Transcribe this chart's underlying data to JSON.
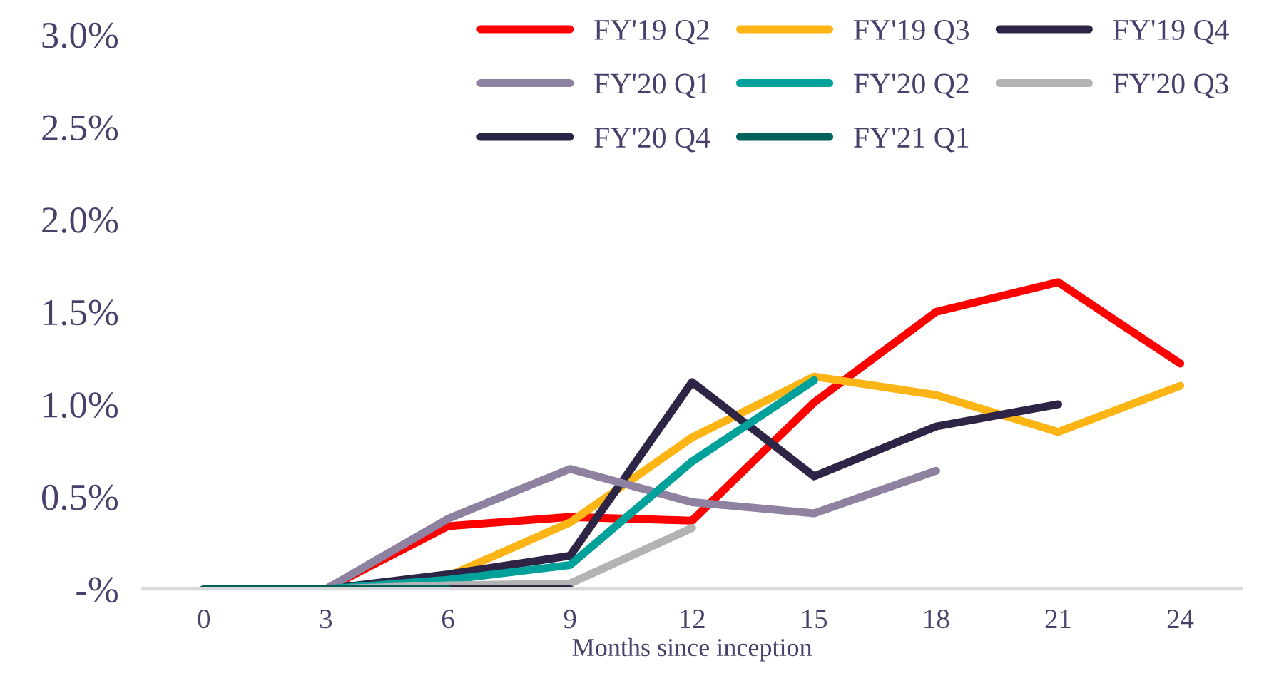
{
  "chart_data": {
    "type": "line",
    "xlabel": "Months since inception",
    "x": [
      0,
      3,
      6,
      9,
      12,
      15,
      18,
      21,
      24
    ],
    "series": [
      {
        "name": "FY'19 Q2",
        "color": "#ff0000",
        "values": [
          0,
          0,
          0.34,
          0.39,
          0.37,
          1.01,
          1.5,
          1.66,
          1.22
        ]
      },
      {
        "name": "FY'19 Q3",
        "color": "#fdb515",
        "values": [
          0,
          0,
          0.07,
          0.36,
          0.82,
          1.15,
          1.05,
          0.85,
          1.1
        ]
      },
      {
        "name": "FY'19 Q4",
        "color": "#2e2445",
        "values": [
          0,
          0,
          0.08,
          0.18,
          1.12,
          0.61,
          0.88,
          1.0,
          null
        ]
      },
      {
        "name": "FY'20 Q1",
        "color": "#8e82a0",
        "values": [
          0,
          0,
          0.38,
          0.65,
          0.47,
          0.41,
          0.64,
          null,
          null
        ]
      },
      {
        "name": "FY'20 Q2",
        "color": "#00a19a",
        "values": [
          0,
          0,
          0.05,
          0.13,
          0.69,
          1.13,
          null,
          null,
          null
        ]
      },
      {
        "name": "FY'20 Q3",
        "color": "#b3b3b3",
        "values": [
          0,
          0,
          0.02,
          0.03,
          0.33,
          null,
          null,
          null,
          null
        ]
      },
      {
        "name": "FY'20 Q4",
        "color": "#2e2445",
        "values": [
          null,
          null,
          0,
          0,
          null,
          null,
          null,
          null,
          null
        ]
      },
      {
        "name": "FY'21 Q1",
        "color": "#00625a",
        "values": [
          0,
          0,
          0,
          null,
          null,
          null,
          null,
          null,
          null
        ]
      }
    ],
    "xlim": [
      -1.5,
      25.5
    ],
    "xticks": [
      0,
      3,
      6,
      9,
      12,
      15,
      18,
      21,
      24
    ],
    "ylim": [
      0,
      3.0
    ],
    "yticks": [
      {
        "value": 0,
        "label": "-%"
      },
      {
        "value": 0.5,
        "label": "0.5%"
      },
      {
        "value": 1.0,
        "label": "1.0%"
      },
      {
        "value": 1.5,
        "label": "1.5%"
      },
      {
        "value": 2.0,
        "label": "2.0%"
      },
      {
        "value": 2.5,
        "label": "2.5%"
      },
      {
        "value": 3.0,
        "label": "3.0%"
      }
    ],
    "grid": false,
    "legend": "top right",
    "marker": "none",
    "line_style": "solid"
  }
}
